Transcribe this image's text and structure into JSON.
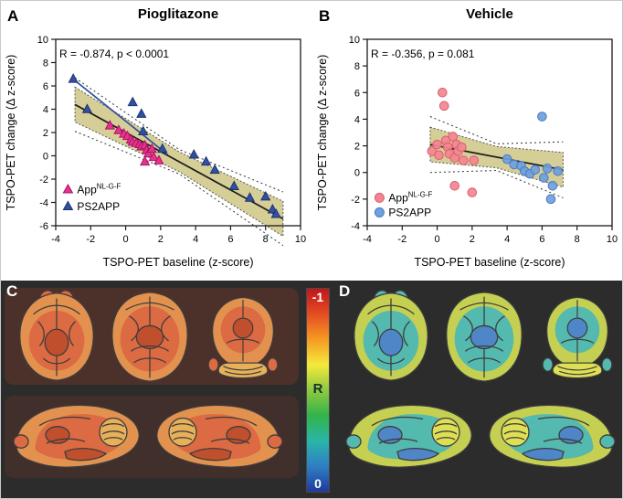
{
  "figure": {
    "panel_c_label": "C",
    "panel_d_label": "D",
    "colorbar": {
      "top_label": "-1",
      "mid_label": "R",
      "bottom_label": "0",
      "gradient": [
        "#c0161b",
        "#e44d22",
        "#f59b22",
        "#f4ea3b",
        "#8fc83f",
        "#32b44a",
        "#2ab5a8",
        "#2f7ec4",
        "#1f3a9d"
      ]
    }
  },
  "brain_palettes": {
    "pioglitazone": {
      "cortex": "#e2914f",
      "mid": "#dc6a42",
      "deep": "#c04f2e",
      "accent": "#e7b159"
    },
    "vehicle": {
      "cortex": "#c5d052",
      "mid": "#54b9ae",
      "deep": "#4e86c7",
      "accent": "#dfdf55"
    }
  },
  "chart_data": [
    {
      "type": "scatter",
      "panel_label": "A",
      "title": "Pioglitazone",
      "annotation": "R = -0.874, p < 0.0001",
      "xlabel": "TSPO-PET baseline (z-score)",
      "ylabel": "TSPO-PET change (Δ z-score)",
      "xlim": [
        -4,
        10
      ],
      "ylim": [
        -6,
        10
      ],
      "xticks": [
        -4,
        -2,
        0,
        2,
        4,
        6,
        8,
        10
      ],
      "yticks": [
        -6,
        -4,
        -2,
        0,
        2,
        4,
        6,
        8,
        10
      ],
      "marker": "triangle",
      "grid": false,
      "legend_position": "bottom-left",
      "series": [
        {
          "name": "App",
          "name_sup": "NL-G-F",
          "color": "#e8308f",
          "edge": "#a81563",
          "points": [
            [
              -0.9,
              2.6
            ],
            [
              -0.4,
              2.2
            ],
            [
              -0.1,
              1.9
            ],
            [
              0.1,
              1.7
            ],
            [
              0.3,
              1.4
            ],
            [
              0.4,
              1.2
            ],
            [
              0.6,
              1.1
            ],
            [
              0.8,
              1.0
            ],
            [
              0.9,
              0.8
            ],
            [
              1.1,
              0.9
            ],
            [
              1.2,
              0.5
            ],
            [
              1.3,
              0.2
            ],
            [
              1.5,
              0.6
            ],
            [
              1.6,
              -0.1
            ],
            [
              1.1,
              -0.5
            ],
            [
              1.9,
              -0.4
            ]
          ]
        },
        {
          "name": "PS2APP",
          "name_sup": "",
          "color": "#31519f",
          "edge": "#1d3370",
          "points": [
            [
              -3.0,
              6.6
            ],
            [
              -2.2,
              4.0
            ],
            [
              0.4,
              4.6
            ],
            [
              0.9,
              3.6
            ],
            [
              1.0,
              2.1
            ],
            [
              2.1,
              0.6
            ],
            [
              3.9,
              0.1
            ],
            [
              4.6,
              -0.5
            ],
            [
              5.1,
              -1.2
            ],
            [
              6.2,
              -2.6
            ],
            [
              7.1,
              -3.6
            ],
            [
              8.0,
              -3.5
            ],
            [
              8.4,
              -4.6
            ],
            [
              8.6,
              -5.0
            ]
          ]
        }
      ],
      "fit": {
        "x": [
          -2.9,
          9.0
        ],
        "y": [
          4.4,
          -5.4
        ],
        "color": "#1a1a1a",
        "band_color": "#b5a642",
        "band_widths": [
          1.5,
          0.85,
          1.5
        ],
        "ci_widths": [
          2.3,
          1.05,
          2.3
        ]
      },
      "fit2": {
        "x": [
          -3.1,
          2.4
        ],
        "y": [
          6.7,
          0.1
        ],
        "color": "#31519f"
      },
      "legend": {
        "x": -3.3,
        "rows_y": [
          -2.9,
          -4.35
        ]
      }
    },
    {
      "type": "scatter",
      "panel_label": "B",
      "title": "Vehicle",
      "annotation": "R = -0.356, p = 0.081",
      "xlabel": "TSPO-PET baseline (z-score)",
      "ylabel": "TSPO-PET change (Δ z-score)",
      "xlim": [
        -4,
        10
      ],
      "ylim": [
        -4,
        10
      ],
      "xticks": [
        -4,
        -2,
        0,
        2,
        4,
        6,
        8,
        10
      ],
      "yticks": [
        -4,
        -2,
        0,
        2,
        4,
        6,
        8,
        10
      ],
      "marker": "circle",
      "grid": false,
      "legend_position": "bottom-left",
      "series": [
        {
          "name": "App",
          "name_sup": "NL-G-F",
          "color": "#f28591",
          "edge": "#df5e6e",
          "points": [
            [
              -0.3,
              1.6
            ],
            [
              0.0,
              2.1
            ],
            [
              0.1,
              1.3
            ],
            [
              0.3,
              6.0
            ],
            [
              0.4,
              5.0
            ],
            [
              0.5,
              2.4
            ],
            [
              0.6,
              1.9
            ],
            [
              0.7,
              1.4
            ],
            [
              0.9,
              2.7
            ],
            [
              1.0,
              1.1
            ],
            [
              1.1,
              2.1
            ],
            [
              1.2,
              1.6
            ],
            [
              1.4,
              1.9
            ],
            [
              1.5,
              0.9
            ],
            [
              1.0,
              -1.0
            ],
            [
              2.0,
              -1.5
            ],
            [
              2.1,
              0.9
            ]
          ]
        },
        {
          "name": "PS2APP",
          "name_sup": "",
          "color": "#6f9fdc",
          "edge": "#4a7cc2",
          "points": [
            [
              4.0,
              1.0
            ],
            [
              4.4,
              0.6
            ],
            [
              4.8,
              0.5
            ],
            [
              5.0,
              0.1
            ],
            [
              5.3,
              -0.1
            ],
            [
              5.6,
              0.2
            ],
            [
              6.0,
              4.2
            ],
            [
              6.1,
              -0.4
            ],
            [
              6.3,
              0.3
            ],
            [
              6.5,
              -2.0
            ],
            [
              6.6,
              -1.0
            ],
            [
              6.9,
              0.1
            ]
          ]
        }
      ],
      "fit": {
        "x": [
          -0.4,
          7.2
        ],
        "y": [
          2.1,
          0.2
        ],
        "color": "#1a1a1a",
        "band_color": "#b5a642",
        "band_widths": [
          1.3,
          0.8,
          1.3
        ],
        "ci_widths": [
          2.1,
          1.0,
          2.1
        ]
      },
      "legend": {
        "x": -3.3,
        "rows_y": [
          -1.9,
          -3.0
        ]
      }
    }
  ]
}
